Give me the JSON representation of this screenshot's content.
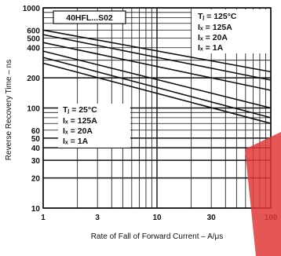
{
  "chart_data": {
    "type": "line",
    "xscale": "log",
    "yscale": "log",
    "xlim": [
      1,
      100
    ],
    "ylim": [
      10,
      1000
    ],
    "xlabel": "Rate of Fall of Forward Current – A/μs",
    "ylabel": "Reverse Recovery Time – ns",
    "x_ticks": [
      "1",
      "3",
      "10",
      "30",
      "100"
    ],
    "y_ticks": [
      "10",
      "20",
      "30",
      "40",
      "50",
      "60",
      "100",
      "200",
      "400",
      "500",
      "600",
      "1000"
    ],
    "grid": true,
    "model_label": "40HFL...S02",
    "groups": [
      {
        "legend": [
          "Tⱼ = 125°C",
          "Iₓ = 125A",
          "Iₓ = 20A",
          "Iₓ = 1A"
        ],
        "condition": "T_J = 125°C",
        "series": [
          {
            "name": "I_F = 125A",
            "x": [
              1,
              100
            ],
            "y": [
              600,
              230
            ]
          },
          {
            "name": "I_F = 20A",
            "x": [
              1,
              100
            ],
            "y": [
              540,
              190
            ]
          },
          {
            "name": "I_F = 1A",
            "x": [
              1,
              100
            ],
            "y": [
              450,
              150
            ]
          }
        ]
      },
      {
        "legend": [
          "Tⱼ = 25°C",
          "Iₓ = 125A",
          "Iₓ = 20A",
          "Iₓ = 1A"
        ],
        "condition": "T_J = 25°C",
        "series": [
          {
            "name": "I_F = 125A",
            "x": [
              1,
              100
            ],
            "y": [
              370,
              100
            ]
          },
          {
            "name": "I_F = 20A",
            "x": [
              1,
              100
            ],
            "y": [
              320,
              80
            ]
          },
          {
            "name": "I_F = 1A",
            "x": [
              1,
              100
            ],
            "y": [
              280,
              70
            ]
          }
        ]
      }
    ]
  },
  "colors": {
    "line": "#111111",
    "background": "#ffffff",
    "watermark": "#e03a3a"
  }
}
